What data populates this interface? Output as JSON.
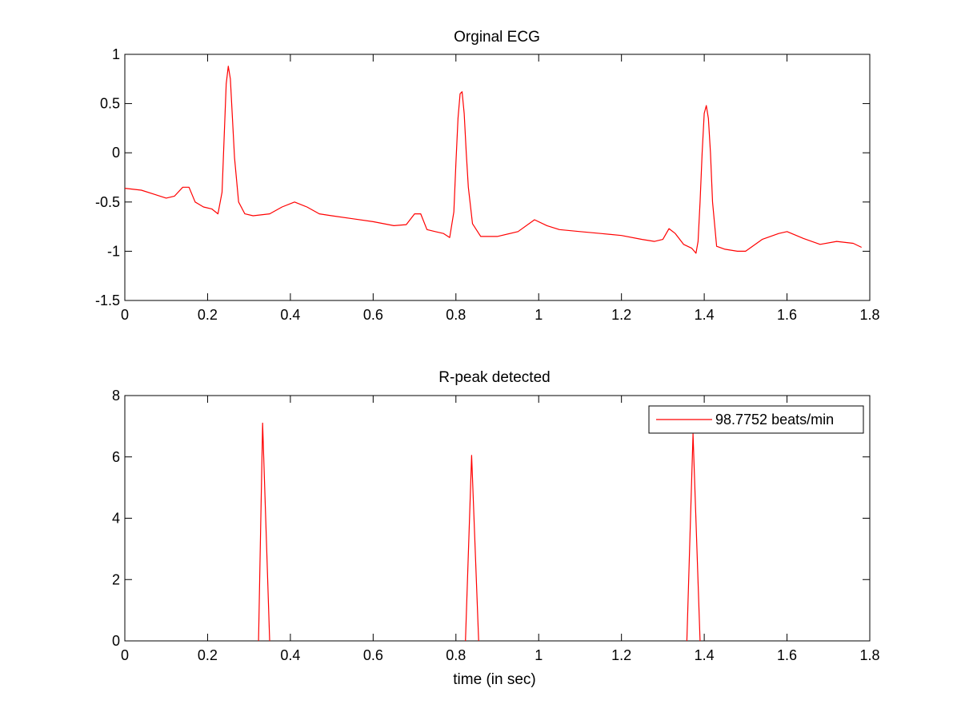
{
  "colors": {
    "trace": "#ff0000",
    "background": "#ffffff",
    "axes": "#000000"
  },
  "chart_data": [
    {
      "type": "line",
      "title": "Orginal ECG",
      "xlabel": "",
      "ylabel": "",
      "xlim": [
        0,
        1.8
      ],
      "ylim": [
        -1.5,
        1
      ],
      "xticks": [
        0,
        0.2,
        0.4,
        0.6,
        0.8,
        1,
        1.2,
        1.4,
        1.6,
        1.8
      ],
      "yticks": [
        -1.5,
        -1,
        -0.5,
        0,
        0.5,
        1
      ],
      "xtick_labels": [
        "0",
        "0.2",
        "0.4",
        "0.6",
        "0.8",
        "1",
        "1.2",
        "1.4",
        "1.6",
        "1.8"
      ],
      "ytick_labels": [
        "-1.5",
        "-1",
        "-0.5",
        "0",
        "0.5",
        "1"
      ],
      "grid": false,
      "series": [
        {
          "color": "#ff0000",
          "x": [
            0,
            0.04,
            0.07,
            0.1,
            0.12,
            0.14,
            0.155,
            0.17,
            0.19,
            0.21,
            0.225,
            0.235,
            0.24,
            0.245,
            0.25,
            0.255,
            0.26,
            0.265,
            0.275,
            0.29,
            0.31,
            0.35,
            0.38,
            0.41,
            0.44,
            0.47,
            0.5,
            0.55,
            0.6,
            0.65,
            0.68,
            0.7,
            0.715,
            0.73,
            0.75,
            0.77,
            0.785,
            0.795,
            0.8,
            0.805,
            0.81,
            0.815,
            0.82,
            0.825,
            0.83,
            0.84,
            0.86,
            0.9,
            0.95,
            0.99,
            1.02,
            1.05,
            1.1,
            1.15,
            1.2,
            1.25,
            1.28,
            1.3,
            1.315,
            1.33,
            1.35,
            1.37,
            1.38,
            1.385,
            1.39,
            1.395,
            1.4,
            1.405,
            1.41,
            1.415,
            1.42,
            1.43,
            1.45,
            1.48,
            1.5,
            1.54,
            1.58,
            1.6,
            1.64,
            1.68,
            1.72,
            1.76,
            1.78
          ],
          "y": [
            -0.36,
            -0.38,
            -0.42,
            -0.46,
            -0.44,
            -0.35,
            -0.35,
            -0.5,
            -0.55,
            -0.57,
            -0.62,
            -0.4,
            0.15,
            0.7,
            0.88,
            0.75,
            0.35,
            -0.05,
            -0.5,
            -0.62,
            -0.64,
            -0.62,
            -0.55,
            -0.5,
            -0.55,
            -0.62,
            -0.64,
            -0.67,
            -0.7,
            -0.74,
            -0.73,
            -0.62,
            -0.62,
            -0.78,
            -0.8,
            -0.82,
            -0.86,
            -0.6,
            -0.1,
            0.35,
            0.6,
            0.62,
            0.4,
            0.0,
            -0.35,
            -0.72,
            -0.85,
            -0.85,
            -0.8,
            -0.68,
            -0.74,
            -0.78,
            -0.8,
            -0.82,
            -0.84,
            -0.88,
            -0.9,
            -0.88,
            -0.77,
            -0.82,
            -0.93,
            -0.97,
            -1.02,
            -0.9,
            -0.5,
            0.0,
            0.4,
            0.48,
            0.35,
            0.0,
            -0.5,
            -0.95,
            -0.98,
            -1.0,
            -1.0,
            -0.88,
            -0.82,
            -0.8,
            -0.87,
            -0.93,
            -0.9,
            -0.92,
            -0.96
          ]
        }
      ]
    },
    {
      "type": "line",
      "title": "R-peak detected",
      "xlabel": "time (in sec)",
      "ylabel": "",
      "xlim": [
        0,
        1.8
      ],
      "ylim": [
        0,
        8
      ],
      "xticks": [
        0,
        0.2,
        0.4,
        0.6,
        0.8,
        1,
        1.2,
        1.4,
        1.6,
        1.8
      ],
      "yticks": [
        0,
        2,
        4,
        6,
        8
      ],
      "xtick_labels": [
        "0",
        "0.2",
        "0.4",
        "0.6",
        "0.8",
        "1",
        "1.2",
        "1.4",
        "1.6",
        "1.8"
      ],
      "ytick_labels": [
        "0",
        "2",
        "4",
        "6",
        "8"
      ],
      "grid": false,
      "legend": {
        "placement": "top-right",
        "entries": [
          "98.7752 beats/min"
        ]
      },
      "series": [
        {
          "name": "98.7752 beats/min",
          "color": "#ff0000",
          "x": [
            0.323,
            0.333,
            0.35,
            0.823,
            0.838,
            0.855,
            1.358,
            1.373,
            1.39
          ],
          "y": [
            0,
            7.1,
            0,
            0,
            6.05,
            0,
            0,
            6.75,
            0
          ],
          "segments": [
            [
              0,
              3
            ],
            [
              3,
              6
            ],
            [
              6,
              9
            ]
          ]
        }
      ]
    }
  ]
}
